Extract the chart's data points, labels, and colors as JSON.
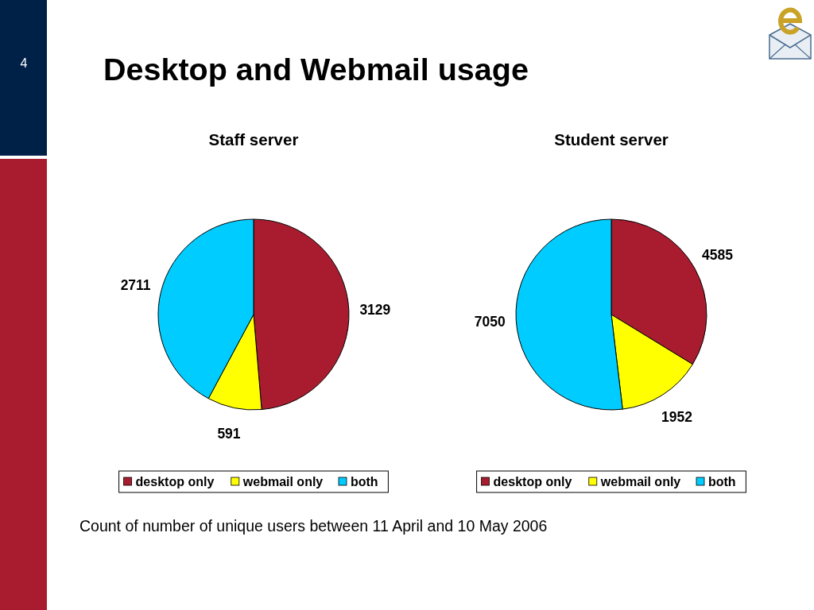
{
  "chart_data": [
    {
      "type": "other",
      "title": "Desktop and Webmail usage",
      "annotations": [
        "4",
        "Count of number of unique users between 11 April and 10 May 2006"
      ]
    },
    {
      "type": "pie",
      "title": "Staff server",
      "categories": [
        "desktop only",
        "webmail only",
        "both"
      ],
      "values": [
        3129,
        591,
        2711
      ],
      "colors": [
        "#a91c2f",
        "#ffff00",
        "#00ccff"
      ],
      "data_labels": true,
      "legend": "bottom"
    },
    {
      "type": "pie",
      "title": "Student server",
      "categories": [
        "desktop only",
        "webmail only",
        "both"
      ],
      "values": [
        4585,
        1952,
        7050
      ],
      "colors": [
        "#a91c2f",
        "#ffff00",
        "#00ccff"
      ],
      "data_labels": true,
      "legend": "bottom"
    }
  ]
}
